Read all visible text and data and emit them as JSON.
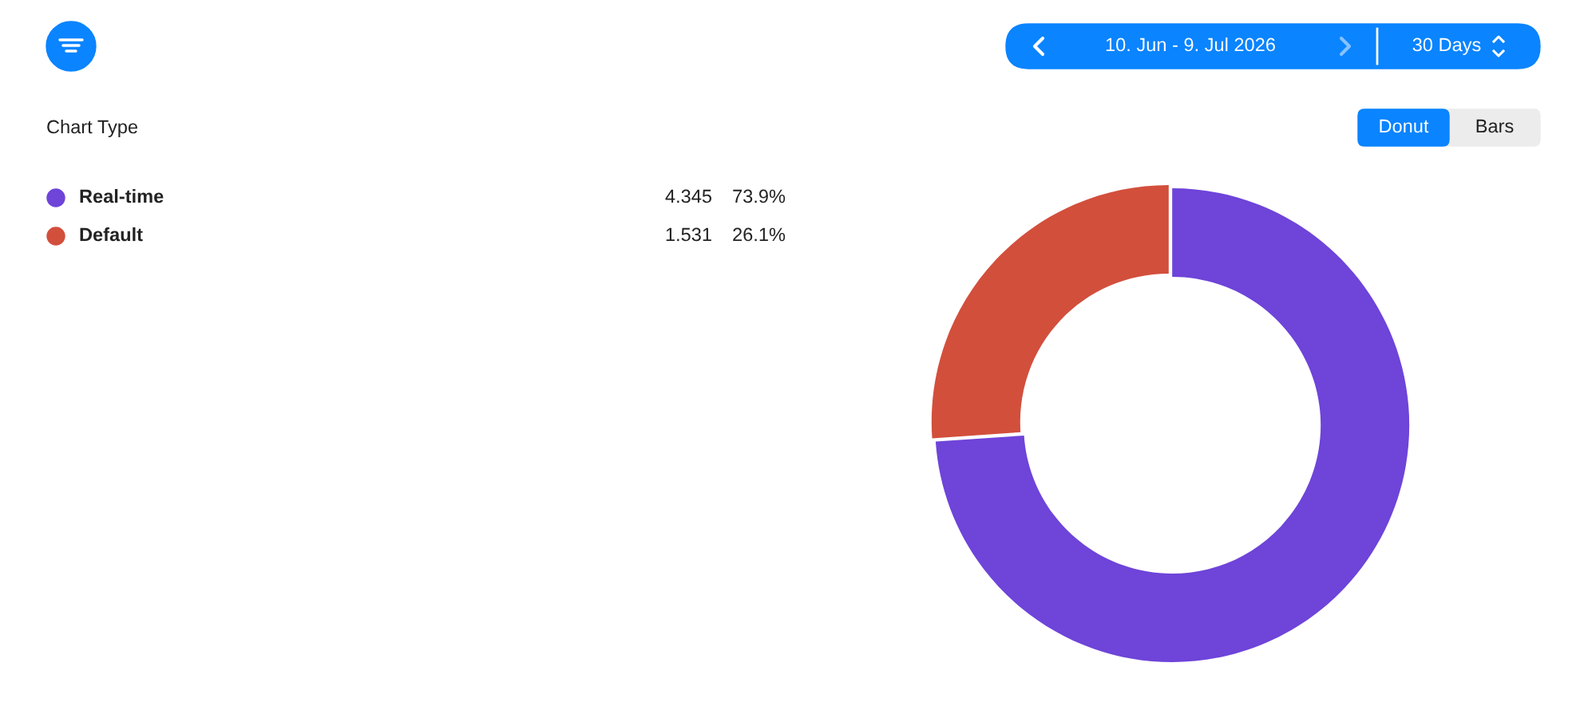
{
  "chart_data": {
    "type": "donut",
    "categories": [
      "Real-time",
      "Default"
    ],
    "values": [
      73.9,
      26.1
    ],
    "value_labels": [
      "73.9%",
      "26.1%"
    ],
    "colors": [
      "#6e44d9",
      "#d24f3c"
    ],
    "legend": "top left",
    "annotations": [
      "10. Jun - 9. Jul 2026",
      "30 Days",
      "Chart Type",
      "Donut",
      "Bars",
      "4.345",
      "1.531"
    ]
  }
}
